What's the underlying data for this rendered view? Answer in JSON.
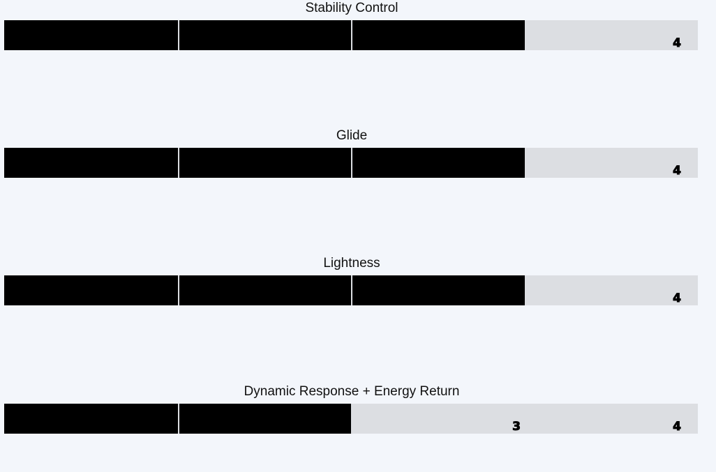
{
  "chart_data": [
    {
      "type": "bar",
      "orientation": "horizontal",
      "title": "Stability Control",
      "value": 3,
      "xlim": [
        0,
        4
      ],
      "ticks": [
        "0",
        "1",
        "2",
        "3",
        "4"
      ],
      "fill_color": "#000000",
      "track_color": "#dcdee2"
    },
    {
      "type": "bar",
      "orientation": "horizontal",
      "title": "Glide",
      "value": 3,
      "xlim": [
        0,
        4
      ],
      "ticks": [
        "0",
        "1",
        "2",
        "3",
        "4"
      ],
      "fill_color": "#000000",
      "track_color": "#dcdee2"
    },
    {
      "type": "bar",
      "orientation": "horizontal",
      "title": "Lightness",
      "value": 3,
      "xlim": [
        0,
        4
      ],
      "ticks": [
        "0",
        "1",
        "2",
        "3",
        "4"
      ],
      "fill_color": "#000000",
      "track_color": "#dcdee2"
    },
    {
      "type": "bar",
      "orientation": "horizontal",
      "title": "Dynamic Response + Energy Return",
      "value": 2,
      "xlim": [
        0,
        4
      ],
      "ticks": [
        "0",
        "1",
        "2",
        "3",
        "4"
      ],
      "fill_color": "#000000",
      "track_color": "#dcdee2"
    }
  ]
}
